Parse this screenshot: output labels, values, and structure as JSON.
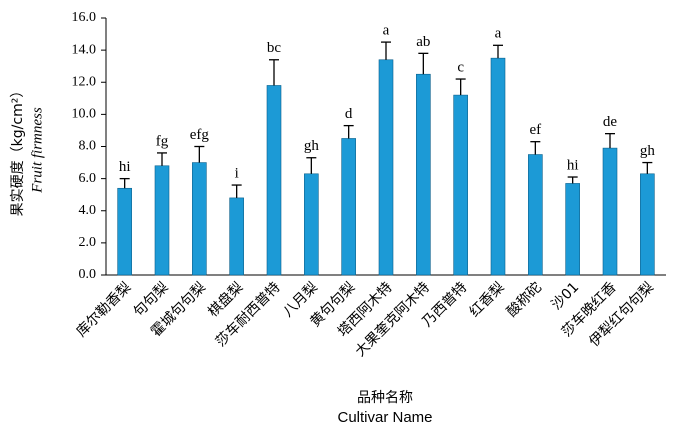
{
  "chart_data": {
    "type": "bar",
    "y_label": "果实硬度（kg/cm²）",
    "y_label_en": "Fruit firmness",
    "x_label": "品种名称",
    "x_label_en": "Cultivar Name",
    "categories": [
      "库尔勒香梨",
      "句句梨",
      "霍城句句梨",
      "棋盘梨",
      "莎车耐西普特",
      "八月梨",
      "黄句句梨",
      "塔西阿木特",
      "大果奎克阿木特",
      "乃西普特",
      "红香梨",
      "酸称砣",
      "沙01",
      "莎车晚红香",
      "伊犁红句句梨"
    ],
    "series": [
      {
        "color": "#1c9ad6",
        "values": [
          5.4,
          6.8,
          7.0,
          4.8,
          11.8,
          6.3,
          8.5,
          13.4,
          12.5,
          11.2,
          13.5,
          7.5,
          5.7,
          7.9,
          6.3
        ],
        "errors": [
          0.6,
          0.8,
          1.0,
          0.8,
          1.6,
          1.0,
          0.8,
          1.1,
          1.3,
          1.0,
          0.8,
          0.8,
          0.4,
          0.9,
          0.7
        ],
        "significance": [
          "hi",
          "fg",
          "efg",
          "i",
          "bc",
          "gh",
          "d",
          "a",
          "ab",
          "c",
          "a",
          "ef",
          "hi",
          "de",
          "gh"
        ]
      }
    ],
    "ylim": [
      0,
      16
    ],
    "yticks": [
      {
        "value": 0,
        "label": "0.0"
      },
      {
        "value": 2,
        "label": "2.0"
      },
      {
        "value": 4,
        "label": "4.0"
      },
      {
        "value": 6,
        "label": "6.0"
      },
      {
        "value": 8,
        "label": "8.0"
      },
      {
        "value": 10,
        "label": "10.0"
      },
      {
        "value": 12,
        "label": "12.0"
      },
      {
        "value": 14,
        "label": "14.0"
      },
      {
        "value": 16,
        "label": "16.0"
      }
    ]
  }
}
